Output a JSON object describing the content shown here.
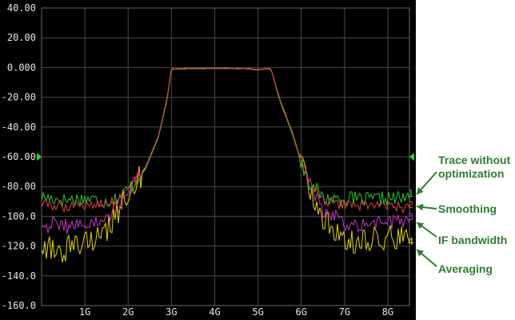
{
  "chart_data": {
    "type": "line",
    "yaxis": {
      "ylim": [
        -160,
        40
      ],
      "tick_values": [
        40,
        20,
        0,
        -20,
        -40,
        -60,
        -80,
        -100,
        -120,
        -140,
        -160
      ],
      "tick_labels": [
        "40.00",
        "20.00",
        "0.000",
        "-20.00",
        "-40.00",
        "-60.00",
        "-80.00",
        "-100.0",
        "-120.0",
        "-140.0",
        "-160.0"
      ]
    },
    "xaxis": {
      "xlim": [
        0.0,
        8.5
      ],
      "tick_values": [
        1,
        2,
        3,
        4,
        5,
        6,
        7,
        8
      ],
      "tick_labels": [
        "1G",
        "2G",
        "3G",
        "4G",
        "5G",
        "6G",
        "7G",
        "8G"
      ]
    },
    "grid": true,
    "reference_level": -60,
    "series": [
      {
        "marker": "1",
        "color": "#22cc22",
        "x": [
          0.0,
          0.5,
          1.0,
          1.5,
          1.8,
          2.1,
          2.4,
          2.7,
          2.9,
          3.0,
          3.2,
          4.0,
          4.8,
          5.0,
          5.2,
          5.3,
          5.5,
          5.8,
          6.0,
          6.2,
          6.5,
          7.0,
          7.5,
          8.0,
          8.5
        ],
        "y": [
          -87,
          -89,
          -88,
          -90,
          -87,
          -79,
          -68,
          -47,
          -22,
          -1,
          -0.8,
          -0.5,
          -0.8,
          -1.5,
          -0.8,
          -1,
          -22,
          -45,
          -64,
          -77,
          -88,
          -88,
          -89,
          -88,
          -88
        ]
      },
      {
        "marker": "2",
        "color": "#e04040",
        "x": [
          0.0,
          0.5,
          1.0,
          1.5,
          1.8,
          2.1,
          2.4,
          2.7,
          2.9,
          3.0,
          3.2,
          4.0,
          4.8,
          5.0,
          5.2,
          5.3,
          5.5,
          5.8,
          6.0,
          6.2,
          6.5,
          7.0,
          7.5,
          8.0,
          8.5
        ],
        "y": [
          -92,
          -93,
          -92,
          -92,
          -88,
          -78,
          -67,
          -46,
          -21,
          -1,
          -0.8,
          -0.5,
          -0.8,
          -1.5,
          -0.8,
          -1,
          -21,
          -44,
          -63,
          -76,
          -90,
          -92,
          -92,
          -93,
          -94
        ]
      },
      {
        "marker": "3",
        "color": "#cc33cc",
        "x": [
          0.0,
          0.5,
          1.0,
          1.5,
          1.8,
          2.1,
          2.4,
          2.7,
          2.9,
          3.0,
          3.2,
          4.0,
          4.8,
          5.0,
          5.2,
          5.3,
          5.5,
          5.8,
          6.0,
          6.2,
          6.5,
          7.0,
          7.5,
          8.0,
          8.5
        ],
        "y": [
          -105,
          -106,
          -106,
          -103,
          -92,
          -78,
          -67,
          -46,
          -21,
          -1,
          -0.8,
          -0.5,
          -0.8,
          -1.5,
          -0.8,
          -1,
          -21,
          -44,
          -64,
          -80,
          -96,
          -105,
          -104,
          -104,
          -104
        ]
      },
      {
        "marker": "4",
        "color": "#e6d600",
        "x": [
          0.0,
          0.5,
          1.0,
          1.5,
          1.8,
          2.1,
          2.4,
          2.7,
          2.9,
          3.0,
          3.2,
          4.0,
          4.8,
          5.0,
          5.2,
          5.3,
          5.5,
          5.8,
          6.0,
          6.2,
          6.5,
          7.0,
          7.5,
          8.0,
          8.5
        ],
        "y": [
          -120,
          -123,
          -118,
          -110,
          -95,
          -80,
          -68,
          -46,
          -21,
          -1,
          -0.8,
          -0.5,
          -0.8,
          -1.5,
          -0.8,
          -1,
          -21,
          -44,
          -64,
          -81,
          -103,
          -115,
          -117,
          -114,
          -116
        ]
      }
    ],
    "annotations": [
      {
        "marker": "1",
        "text": "Trace without\noptimization"
      },
      {
        "marker": "2",
        "text": "Smoothing"
      },
      {
        "marker": "3",
        "text": "IF bandwidth"
      },
      {
        "marker": "4",
        "text": "Averaging"
      }
    ]
  }
}
